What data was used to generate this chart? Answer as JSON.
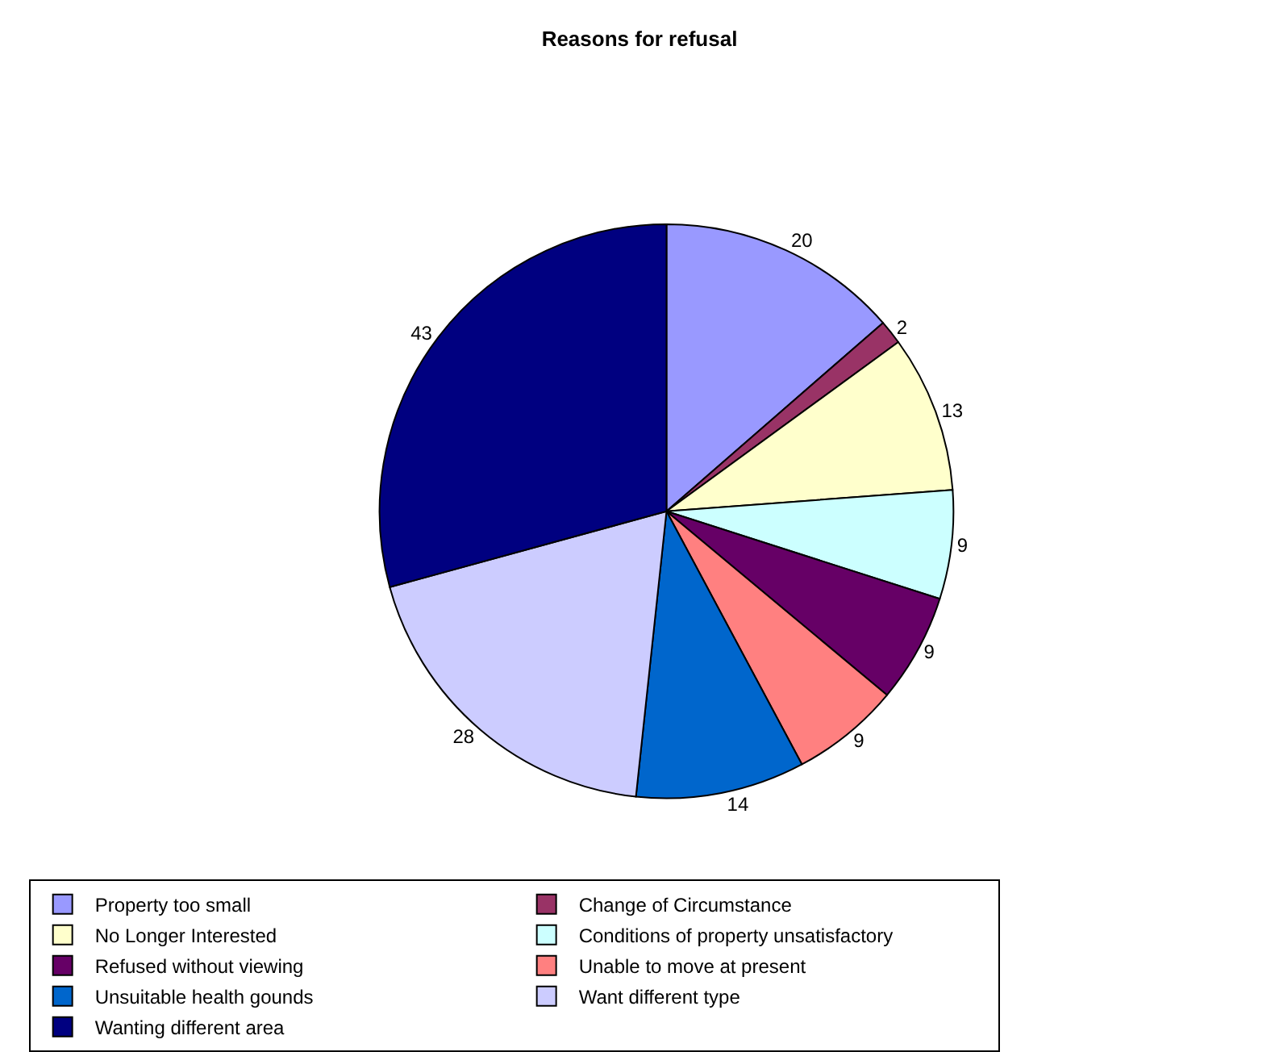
{
  "chart_data": {
    "type": "pie",
    "title": "Reasons for refusal",
    "categories": [
      "Property too small",
      "Change of Circumstance",
      "No Longer Interested",
      "Conditions of property unsatisfactory",
      "Refused without viewing",
      "Unable to move at present",
      "Unsuitable health gounds",
      "Want different type",
      "Wanting different area"
    ],
    "values": [
      20,
      2,
      13,
      9,
      9,
      9,
      14,
      28,
      43
    ],
    "colors": [
      "#9999ff",
      "#993366",
      "#ffffcc",
      "#ccffff",
      "#660066",
      "#ff8080",
      "#0066cc",
      "#ccccff",
      "#000080"
    ],
    "data_labels": true,
    "legend": "bottom"
  }
}
